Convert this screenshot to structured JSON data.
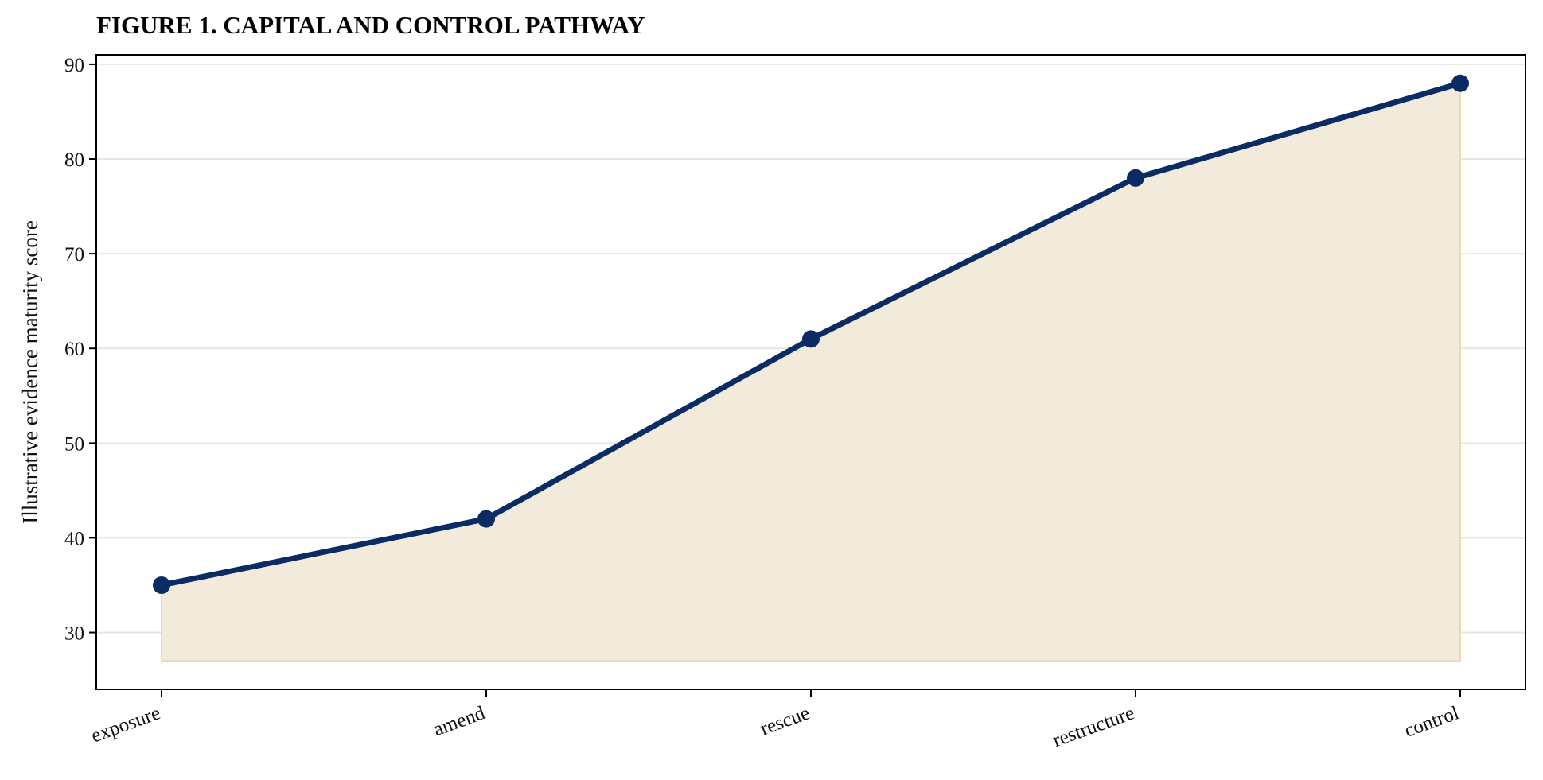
{
  "chart_data": {
    "type": "area",
    "title": "FIGURE 1. CAPITAL AND CONTROL PATHWAY",
    "xlabel": "",
    "ylabel": "Illustrative evidence maturity score",
    "categories": [
      "exposure",
      "amend",
      "rescue",
      "restructure",
      "control"
    ],
    "series": [
      {
        "values": [
          35,
          42,
          61,
          78,
          88
        ]
      }
    ],
    "fill_baseline": 27,
    "ylim": [
      24,
      91
    ],
    "yticks": [
      30,
      40,
      50,
      60,
      70,
      80,
      90
    ],
    "grid": "horizontal",
    "legend": "none",
    "colors": {
      "line": "#0b2c63",
      "fill": "#f2ebdc",
      "fill_edge": "#ead9b2",
      "grid": "#e6e6e6",
      "axis": "#000000"
    }
  }
}
